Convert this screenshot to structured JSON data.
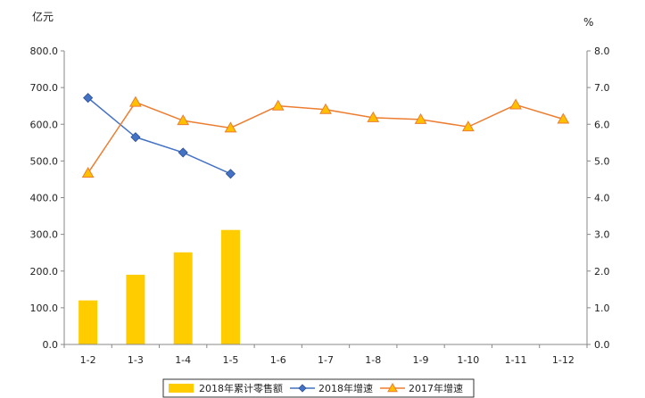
{
  "chart_data": {
    "type": "bar",
    "categories": [
      "1-2",
      "1-3",
      "1-4",
      "1-5",
      "1-6",
      "1-7",
      "1-8",
      "1-9",
      "1-10",
      "1-11",
      "1-12"
    ],
    "left_axis": {
      "unit": "亿元",
      "ylim": [
        0,
        800
      ],
      "ticks": [
        "0.0",
        "100.0",
        "200.0",
        "300.0",
        "400.0",
        "500.0",
        "600.0",
        "700.0",
        "800.0"
      ]
    },
    "right_axis": {
      "unit": "%",
      "ylim": [
        0,
        8
      ],
      "ticks": [
        "0.0",
        "1.0",
        "2.0",
        "3.0",
        "4.0",
        "5.0",
        "6.0",
        "7.0",
        "8.0"
      ]
    },
    "series": [
      {
        "name": "2018年累计零售额",
        "kind": "bar",
        "axis": "left",
        "color": "#FFCC00",
        "values": [
          120,
          190,
          251,
          312,
          null,
          null,
          null,
          null,
          null,
          null,
          null
        ]
      },
      {
        "name": "2018年增速",
        "kind": "line",
        "axis": "right",
        "color": "#4472C4",
        "marker": "diamond",
        "values": [
          6.72,
          5.65,
          5.23,
          4.65,
          null,
          null,
          null,
          null,
          null,
          null,
          null
        ]
      },
      {
        "name": "2017年增速",
        "kind": "line",
        "axis": "right",
        "color": "#ED7D31",
        "marker": "triangle",
        "values": [
          4.67,
          6.6,
          6.1,
          5.9,
          6.5,
          6.4,
          6.18,
          6.13,
          5.93,
          6.53,
          6.14
        ]
      }
    ],
    "grid": false,
    "legend_position": "bottom"
  }
}
